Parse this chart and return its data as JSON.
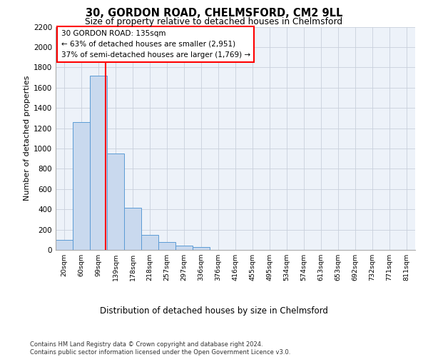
{
  "title_line1": "30, GORDON ROAD, CHELMSFORD, CM2 9LL",
  "title_line2": "Size of property relative to detached houses in Chelmsford",
  "xlabel": "Distribution of detached houses by size in Chelmsford",
  "ylabel": "Number of detached properties",
  "bar_labels": [
    "20sqm",
    "60sqm",
    "99sqm",
    "139sqm",
    "178sqm",
    "218sqm",
    "257sqm",
    "297sqm",
    "336sqm",
    "376sqm",
    "416sqm",
    "455sqm",
    "495sqm",
    "534sqm",
    "574sqm",
    "613sqm",
    "653sqm",
    "692sqm",
    "732sqm",
    "771sqm",
    "811sqm"
  ],
  "bar_values": [
    100,
    1260,
    1720,
    950,
    415,
    150,
    75,
    40,
    25,
    0,
    0,
    0,
    0,
    0,
    0,
    0,
    0,
    0,
    0,
    0,
    0
  ],
  "bar_color": "#c9d9ee",
  "bar_edge_color": "#5b9bd5",
  "grid_color": "#c8d0dc",
  "background_color": "#edf2f9",
  "vline_color": "red",
  "vline_pos": 2.42,
  "annotation_text": "30 GORDON ROAD: 135sqm\n← 63% of detached houses are smaller (2,951)\n37% of semi-detached houses are larger (1,769) →",
  "ylim": [
    0,
    2200
  ],
  "yticks": [
    0,
    200,
    400,
    600,
    800,
    1000,
    1200,
    1400,
    1600,
    1800,
    2000,
    2200
  ],
  "footnote": "Contains HM Land Registry data © Crown copyright and database right 2024.\nContains public sector information licensed under the Open Government Licence v3.0."
}
